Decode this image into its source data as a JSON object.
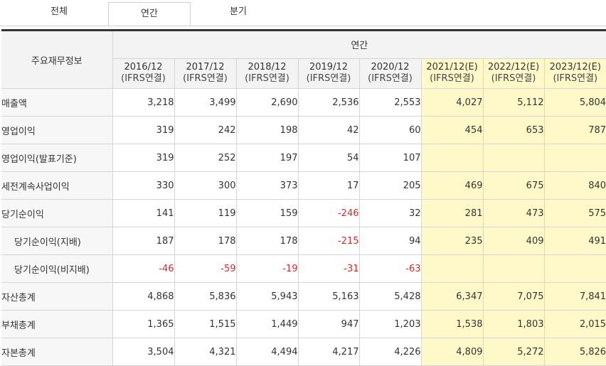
{
  "tabs": [
    {
      "label": "전체",
      "active": false
    },
    {
      "label": "연간",
      "active": true
    },
    {
      "label": "분기",
      "active": false
    }
  ],
  "table": {
    "corner_label": "주요재무정보",
    "group_label": "연간",
    "periods": [
      {
        "year": "2016/12",
        "basis": "(IFRS연결)",
        "estimate": false
      },
      {
        "year": "2017/12",
        "basis": "(IFRS연결)",
        "estimate": false
      },
      {
        "year": "2018/12",
        "basis": "(IFRS연결)",
        "estimate": false
      },
      {
        "year": "2019/12",
        "basis": "(IFRS연결)",
        "estimate": false
      },
      {
        "year": "2020/12",
        "basis": "(IFRS연결)",
        "estimate": false
      },
      {
        "year": "2021/12(E)",
        "basis": "(IFRS연결)",
        "estimate": true
      },
      {
        "year": "2022/12(E)",
        "basis": "(IFRS연결)",
        "estimate": true
      },
      {
        "year": "2023/12(E)",
        "basis": "(IFRS연결)",
        "estimate": true
      }
    ],
    "rows": [
      {
        "label": "매출액",
        "indent": false,
        "values": [
          "3,218",
          "3,499",
          "2,690",
          "2,536",
          "2,553",
          "4,027",
          "5,112",
          "5,804"
        ]
      },
      {
        "label": "영업이익",
        "indent": false,
        "values": [
          "319",
          "242",
          "198",
          "42",
          "60",
          "454",
          "653",
          "787"
        ]
      },
      {
        "label": "영업이익(발표기준)",
        "indent": false,
        "values": [
          "319",
          "252",
          "197",
          "54",
          "107",
          "",
          "",
          ""
        ]
      },
      {
        "label": "세전계속사업이익",
        "indent": false,
        "values": [
          "330",
          "300",
          "373",
          "17",
          "205",
          "469",
          "675",
          "840"
        ]
      },
      {
        "label": "당기순이익",
        "indent": false,
        "values": [
          "141",
          "119",
          "159",
          "-246",
          "32",
          "281",
          "473",
          "575"
        ]
      },
      {
        "label": "당기순이익(지배)",
        "indent": true,
        "values": [
          "187",
          "178",
          "178",
          "-215",
          "94",
          "235",
          "409",
          "491"
        ]
      },
      {
        "label": "당기순이익(비지배)",
        "indent": true,
        "values": [
          "-46",
          "-59",
          "-19",
          "-31",
          "-63",
          "",
          "",
          ""
        ]
      },
      {
        "label": "자산총계",
        "indent": false,
        "values": [
          "4,868",
          "5,836",
          "5,943",
          "5,163",
          "5,428",
          "6,347",
          "7,075",
          "7,841"
        ]
      },
      {
        "label": "부채총계",
        "indent": false,
        "values": [
          "1,365",
          "1,515",
          "1,449",
          "947",
          "1,203",
          "1,538",
          "1,803",
          "2,015"
        ]
      },
      {
        "label": "자본총계",
        "indent": false,
        "values": [
          "3,504",
          "4,321",
          "4,494",
          "4,217",
          "4,226",
          "4,809",
          "5,272",
          "5,826"
        ]
      }
    ]
  }
}
